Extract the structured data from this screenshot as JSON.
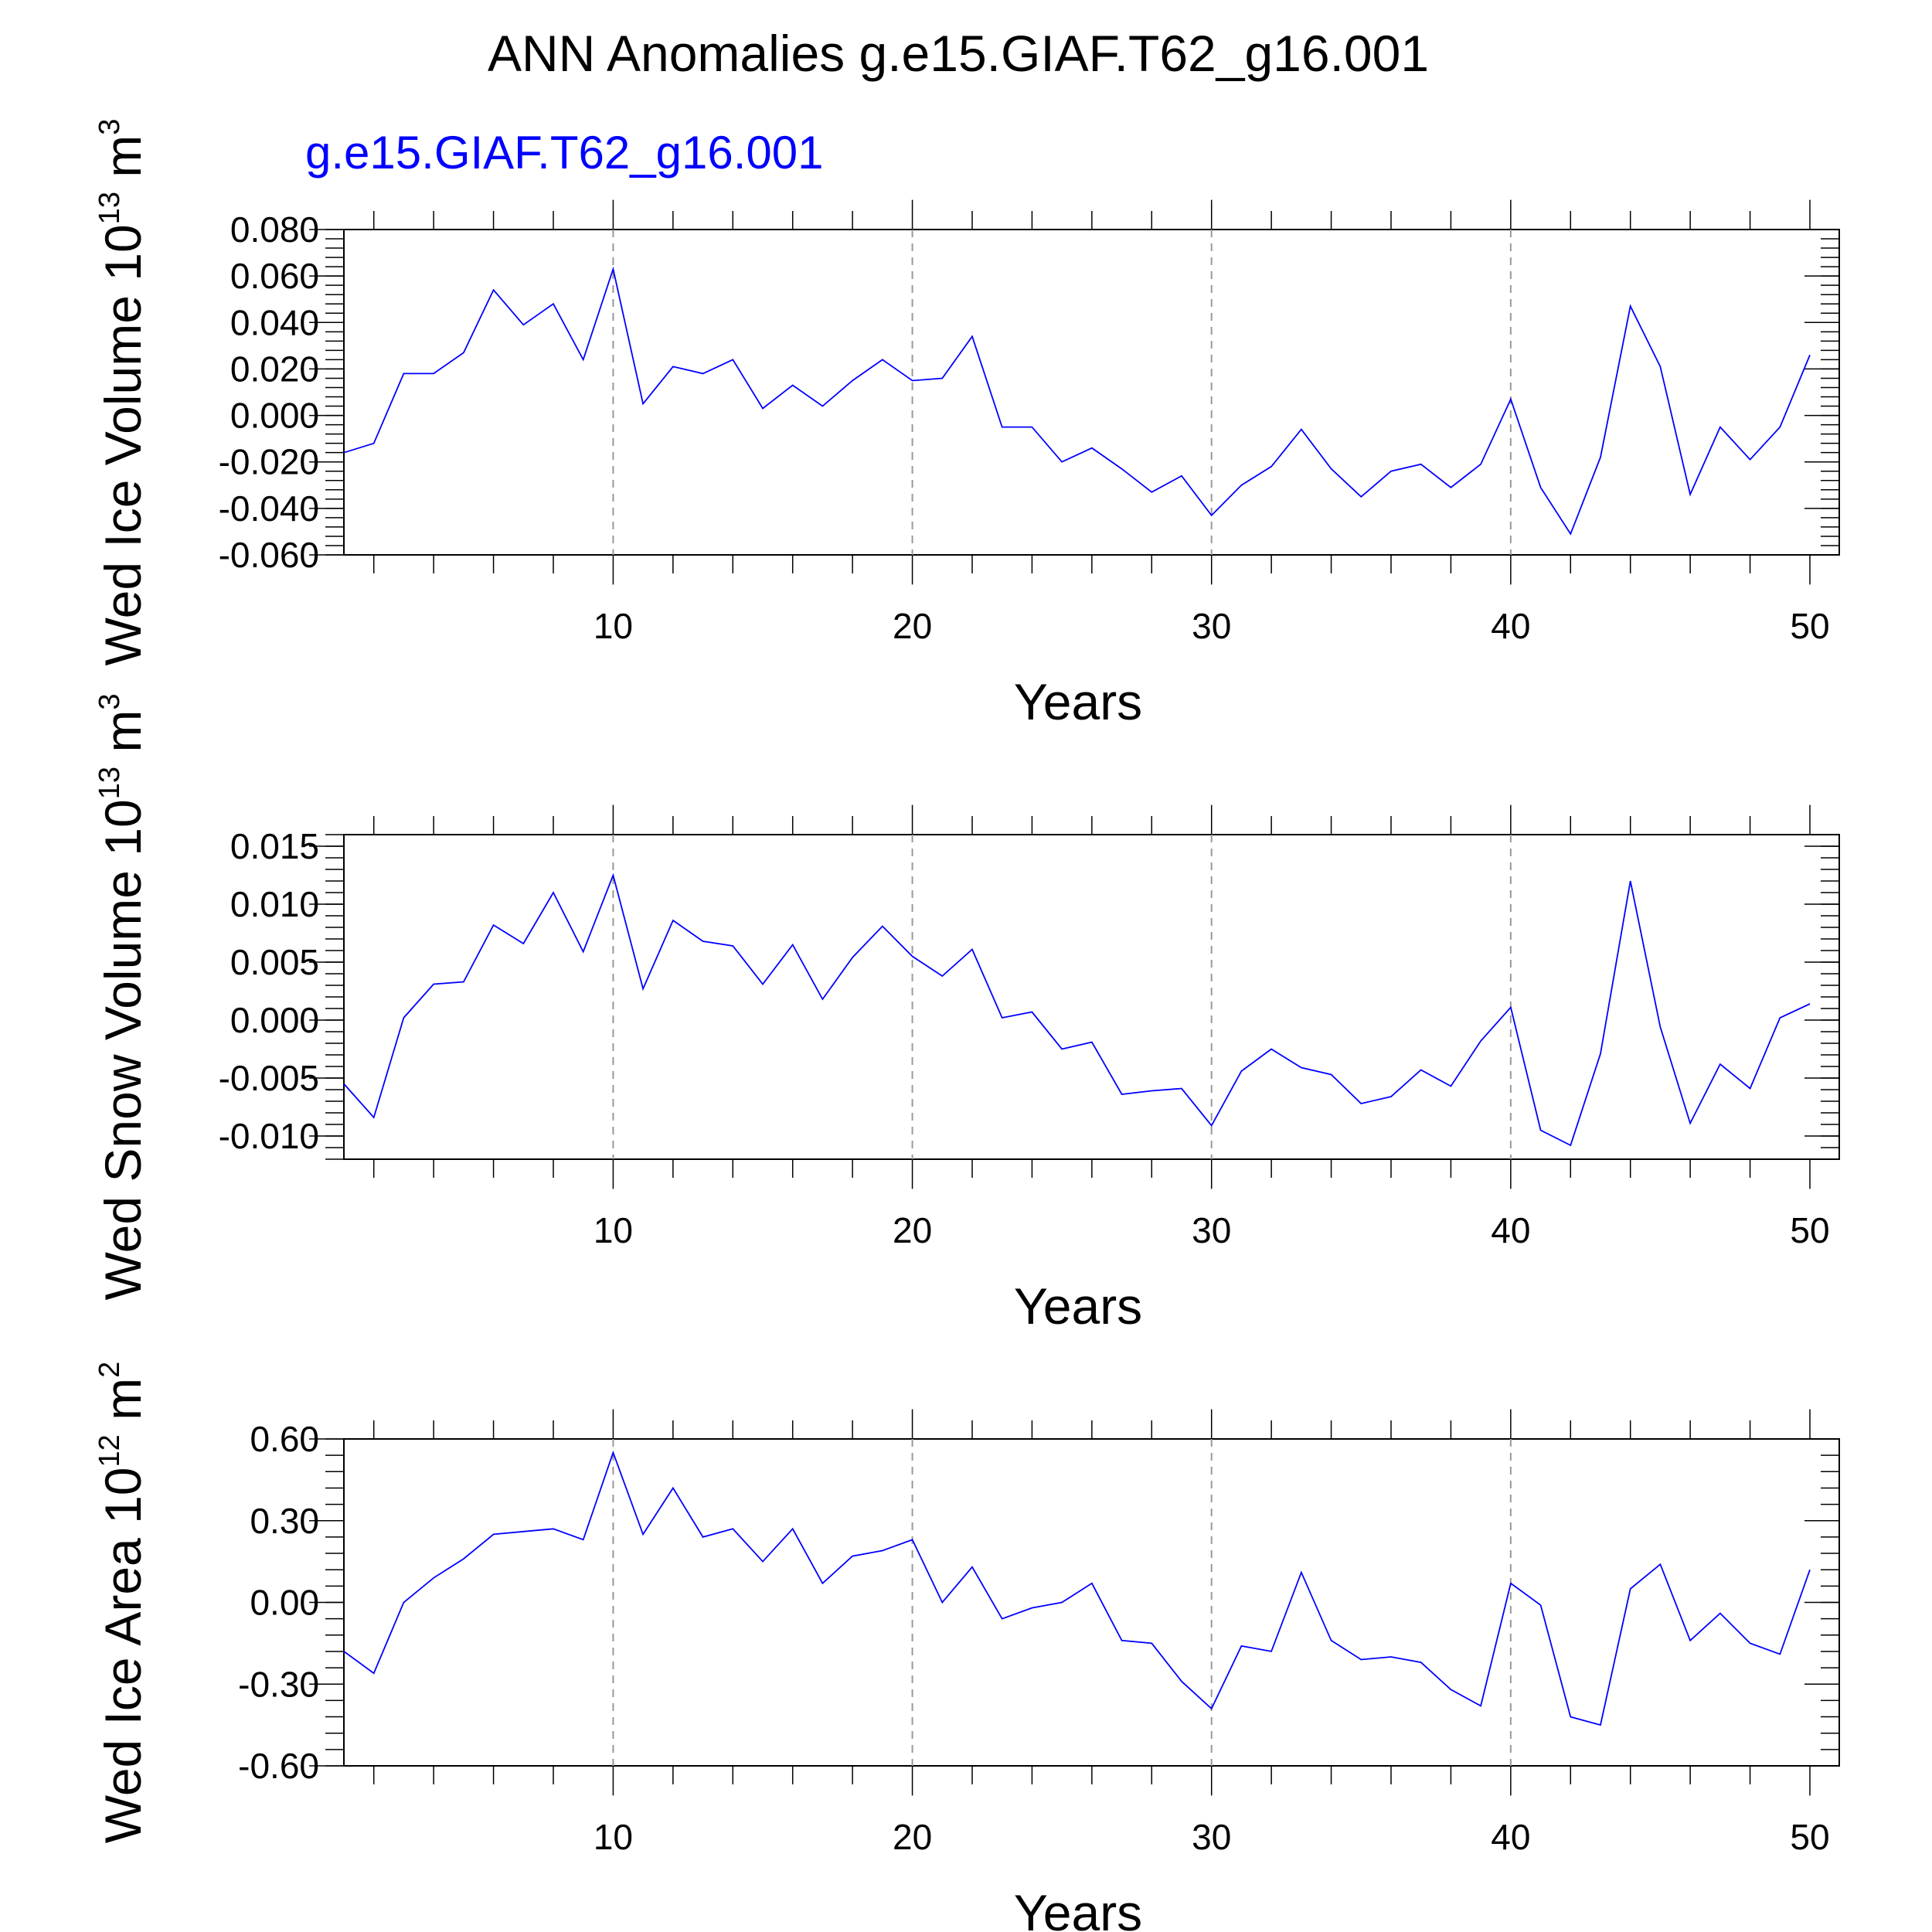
{
  "title": "ANN Anomalies g.e15.GIAF.T62_g16.001",
  "subtitle": "g.e15.GIAF.T62_g16.001",
  "colors": {
    "series": "#0000ff",
    "subtitle": "#0000ff",
    "grid": "#999999"
  },
  "chart_data": [
    {
      "type": "line",
      "ylabel": {
        "text": "Wed Ice Volume 10",
        "sup": "13",
        "unit": " m",
        "unit_sup": "3"
      },
      "xlabel": "Years",
      "xlim": [
        1,
        50
      ],
      "ylim": [
        -0.06,
        0.08
      ],
      "yticks": [
        -0.06,
        -0.04,
        -0.02,
        0.0,
        0.02,
        0.04,
        0.06,
        0.08
      ],
      "ytick_labels": [
        "-0.060",
        "-0.040",
        "-0.020",
        "0.000",
        "0.020",
        "0.040",
        "0.060",
        "0.080"
      ],
      "xticks": [
        10,
        20,
        30,
        40,
        50
      ],
      "xtick_labels": [
        "10",
        "20",
        "30",
        "40",
        "50"
      ],
      "grid_x": [
        10,
        20,
        30,
        40
      ],
      "series": [
        {
          "color": "#0000ff",
          "x": [
            1,
            2,
            3,
            4,
            5,
            6,
            7,
            8,
            9,
            10,
            11,
            12,
            13,
            14,
            15,
            16,
            17,
            18,
            19,
            20,
            21,
            22,
            23,
            24,
            25,
            26,
            27,
            28,
            29,
            30,
            31,
            32,
            33,
            34,
            35,
            36,
            37,
            38,
            39,
            40,
            41,
            42,
            43,
            44,
            45,
            46,
            47,
            48,
            49,
            50
          ],
          "y": [
            -0.016,
            -0.012,
            0.018,
            0.018,
            0.027,
            0.054,
            0.039,
            0.048,
            0.024,
            0.063,
            0.005,
            0.021,
            0.018,
            0.024,
            0.003,
            0.013,
            0.004,
            0.015,
            0.024,
            0.015,
            0.016,
            0.034,
            -0.005,
            -0.005,
            -0.02,
            -0.014,
            -0.023,
            -0.033,
            -0.026,
            -0.043,
            -0.03,
            -0.022,
            -0.006,
            -0.023,
            -0.035,
            -0.024,
            -0.021,
            -0.031,
            -0.021,
            0.007,
            -0.031,
            -0.051,
            -0.018,
            0.047,
            0.021,
            -0.034,
            -0.005,
            -0.019,
            -0.005,
            0.026
          ]
        }
      ]
    },
    {
      "type": "line",
      "ylabel": {
        "text": "Wed Snow Volume 10",
        "sup": "13",
        "unit": " m",
        "unit_sup": "3"
      },
      "xlabel": "Years",
      "xlim": [
        1,
        50
      ],
      "ylim": [
        -0.012,
        0.016
      ],
      "yticks": [
        -0.01,
        -0.005,
        0.0,
        0.005,
        0.01,
        0.015
      ],
      "ytick_labels": [
        "-0.010",
        "-0.005",
        "0.000",
        "0.005",
        "0.010",
        "0.015"
      ],
      "xticks": [
        10,
        20,
        30,
        40,
        50
      ],
      "xtick_labels": [
        "10",
        "20",
        "30",
        "40",
        "50"
      ],
      "grid_x": [
        10,
        20,
        30,
        40
      ],
      "series": [
        {
          "color": "#0000ff",
          "x": [
            1,
            2,
            3,
            4,
            5,
            6,
            7,
            8,
            9,
            10,
            11,
            12,
            13,
            14,
            15,
            16,
            17,
            18,
            19,
            20,
            21,
            22,
            23,
            24,
            25,
            26,
            27,
            28,
            29,
            30,
            31,
            32,
            33,
            34,
            35,
            36,
            37,
            38,
            39,
            40,
            41,
            42,
            43,
            44,
            45,
            46,
            47,
            48,
            49,
            50
          ],
          "y": [
            -0.0055,
            -0.0084,
            0.0002,
            0.0031,
            0.0033,
            0.0082,
            0.0066,
            0.011,
            0.0059,
            0.0125,
            0.0027,
            0.0086,
            0.0068,
            0.0064,
            0.0031,
            0.0065,
            0.0018,
            0.0054,
            0.0081,
            0.0055,
            0.0038,
            0.0061,
            0.0002,
            0.0007,
            -0.0025,
            -0.0019,
            -0.0064,
            -0.0061,
            -0.0059,
            -0.0091,
            -0.0044,
            -0.0025,
            -0.0041,
            -0.0047,
            -0.0072,
            -0.0066,
            -0.0043,
            -0.0057,
            -0.0018,
            0.0011,
            -0.0095,
            -0.0108,
            -0.0029,
            0.012,
            -0.0006,
            -0.0089,
            -0.0038,
            -0.0059,
            0.0002,
            0.0014
          ]
        }
      ]
    },
    {
      "type": "line",
      "ylabel": {
        "text": "Wed Ice Area 10",
        "sup": "12",
        "unit": " m",
        "unit_sup": "2"
      },
      "xlabel": "Years",
      "xlim": [
        1,
        50
      ],
      "ylim": [
        -0.6,
        0.6
      ],
      "yticks": [
        -0.6,
        -0.3,
        0.0,
        0.3,
        0.6
      ],
      "ytick_labels": [
        "-0.60",
        "-0.30",
        "0.00",
        "0.30",
        "0.60"
      ],
      "xticks": [
        10,
        20,
        30,
        40,
        50
      ],
      "xtick_labels": [
        "10",
        "20",
        "30",
        "40",
        "50"
      ],
      "grid_x": [
        10,
        20,
        30,
        40
      ],
      "series": [
        {
          "color": "#0000ff",
          "x": [
            1,
            2,
            3,
            4,
            5,
            6,
            7,
            8,
            9,
            10,
            11,
            12,
            13,
            14,
            15,
            16,
            17,
            18,
            19,
            20,
            21,
            22,
            23,
            24,
            25,
            26,
            27,
            28,
            29,
            30,
            31,
            32,
            33,
            34,
            35,
            36,
            37,
            38,
            39,
            40,
            41,
            42,
            43,
            44,
            45,
            46,
            47,
            48,
            49,
            50
          ],
          "y": [
            -0.18,
            -0.26,
            0.0,
            0.09,
            0.16,
            0.25,
            0.26,
            0.27,
            0.23,
            0.55,
            0.25,
            0.42,
            0.24,
            0.27,
            0.15,
            0.27,
            0.07,
            0.17,
            0.19,
            0.23,
            0.0,
            0.13,
            -0.06,
            -0.02,
            0.0,
            0.07,
            -0.14,
            -0.15,
            -0.29,
            -0.39,
            -0.16,
            -0.18,
            0.11,
            -0.14,
            -0.21,
            -0.2,
            -0.22,
            -0.32,
            -0.38,
            0.07,
            -0.01,
            -0.42,
            -0.45,
            0.05,
            0.14,
            -0.14,
            -0.04,
            -0.15,
            -0.19,
            0.12
          ]
        }
      ]
    }
  ]
}
